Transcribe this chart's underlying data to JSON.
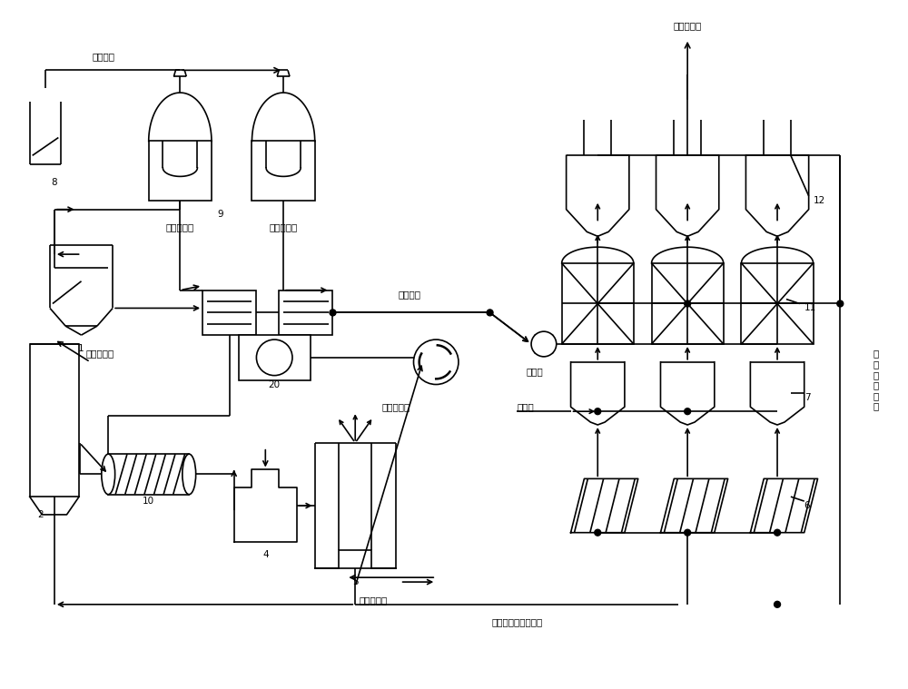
{
  "bg": "#ffffff",
  "lc": "#000000",
  "lw": 1.2,
  "fs": 7.5,
  "labels": {
    "bio_gas": "生物气体",
    "sludge_after": "污泥发酵后",
    "sludge_before": "污泥发酵前",
    "excess_sludge": "过剩污泥",
    "high_density": "高密度污泥",
    "treated_water": "处理后污水",
    "prv": "减压阀",
    "main_sludge": "主污泥",
    "degas_air": "脱气用空气",
    "wastewater": "污水处理厂原始废水",
    "recycle": "循\n环\n处\n理\n污\n泥",
    "n1": "1",
    "n2": "2",
    "n3": "3",
    "n4": "4",
    "n5": "5",
    "n6": "6",
    "n7": "7",
    "n8": "8",
    "n9": "9",
    "n10": "10",
    "n11": "11",
    "n12": "12",
    "n20": "20"
  }
}
